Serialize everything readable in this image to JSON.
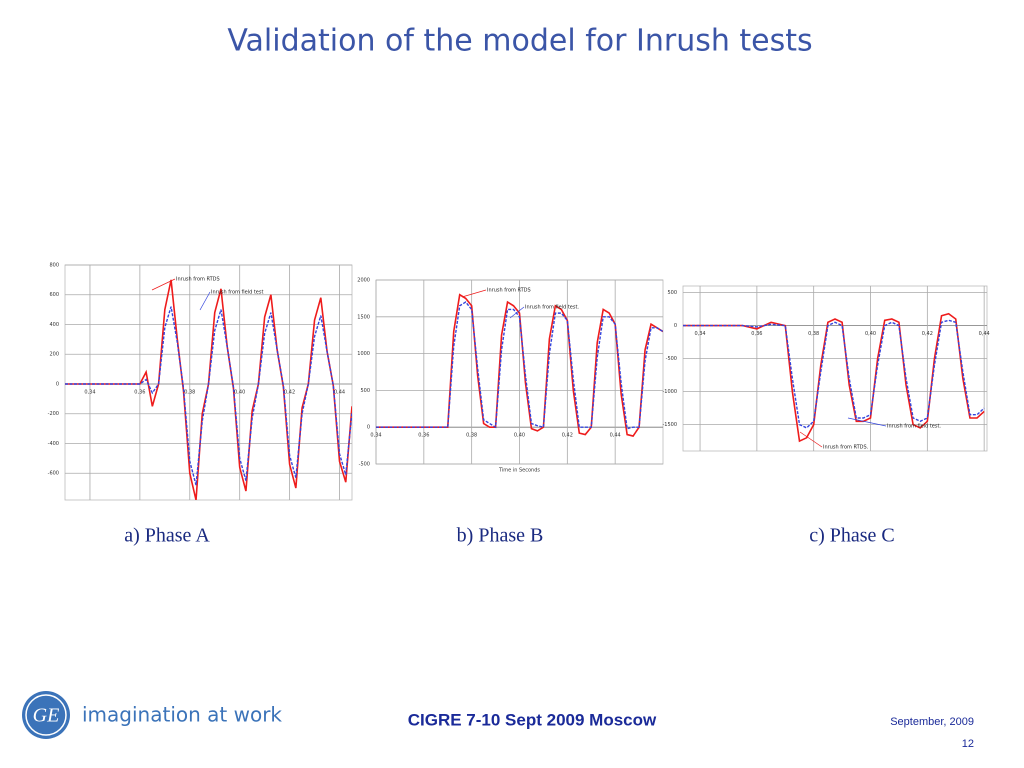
{
  "title": "Validation of the model for Inrush tests",
  "captions": [
    "a) Phase A",
    "b) Phase B",
    "c) Phase C"
  ],
  "footer": {
    "tagline": "imagination at work",
    "event": "CIGRE 7-10 Sept 2009 Moscow",
    "date": "September,  2009",
    "page": "12"
  },
  "chart_data": [
    {
      "type": "line",
      "x": [
        0.33,
        0.335,
        0.34,
        0.345,
        0.35,
        0.355,
        0.36,
        0.3625,
        0.365,
        0.3675,
        0.37,
        0.3725,
        0.375,
        0.3775,
        0.38,
        0.3825,
        0.385,
        0.3875,
        0.39,
        0.3925,
        0.395,
        0.3975,
        0.4,
        0.4025,
        0.405,
        0.4075,
        0.41,
        0.4125,
        0.415,
        0.4175,
        0.42,
        0.4225,
        0.425,
        0.4275,
        0.43,
        0.4325,
        0.435,
        0.4375,
        0.44,
        0.4425,
        0.445
      ],
      "series": [
        {
          "name": "Inrush from RTDS",
          "color": "#ee1c1c",
          "values": [
            0,
            0,
            0,
            0,
            0,
            0,
            0,
            80,
            -150,
            0,
            500,
            700,
            300,
            -50,
            -600,
            -780,
            -200,
            0,
            480,
            640,
            250,
            -30,
            -560,
            -720,
            -180,
            0,
            450,
            600,
            230,
            -20,
            -540,
            -700,
            -160,
            0,
            430,
            580,
            220,
            -10,
            -520,
            -660,
            -150
          ]
        },
        {
          "name": "Inrush from field test",
          "color": "#3344dd",
          "values": [
            0,
            0,
            0,
            0,
            0,
            0,
            0,
            30,
            -60,
            0,
            380,
            520,
            280,
            -30,
            -520,
            -680,
            -250,
            0,
            360,
            500,
            250,
            -20,
            -500,
            -650,
            -230,
            0,
            340,
            480,
            230,
            -10,
            -480,
            -630,
            -200,
            0,
            320,
            460,
            220,
            -10,
            -470,
            -610,
            -190
          ]
        }
      ],
      "xlim": [
        0.33,
        0.445
      ],
      "xticks": [
        {
          "value": 0.34,
          "label": "0,34"
        },
        {
          "value": 0.36,
          "label": "0,36"
        },
        {
          "value": 0.38,
          "label": "0,38"
        },
        {
          "value": 0.4,
          "label": "0,40"
        },
        {
          "value": 0.42,
          "label": "0,42"
        },
        {
          "value": 0.44,
          "label": "0,44"
        }
      ],
      "ylim": [
        -780,
        800
      ],
      "yticks": [
        800,
        600,
        400,
        200,
        0,
        -200,
        -400,
        -600
      ],
      "grid": true
    },
    {
      "type": "line",
      "x": [
        0.34,
        0.345,
        0.35,
        0.355,
        0.36,
        0.365,
        0.37,
        0.3725,
        0.375,
        0.3775,
        0.38,
        0.3825,
        0.385,
        0.3875,
        0.39,
        0.3925,
        0.395,
        0.3975,
        0.4,
        0.4025,
        0.405,
        0.4075,
        0.41,
        0.4125,
        0.415,
        0.4175,
        0.42,
        0.4225,
        0.425,
        0.4275,
        0.43,
        0.4325,
        0.435,
        0.4375,
        0.44,
        0.4425,
        0.445,
        0.4475,
        0.45,
        0.4525,
        0.455,
        0.4575,
        0.46
      ],
      "series": [
        {
          "name": "Inrush from RTDS",
          "color": "#ee1c1c",
          "values": [
            0,
            0,
            0,
            0,
            0,
            0,
            0,
            1300,
            1800,
            1750,
            1650,
            700,
            50,
            0,
            0,
            1250,
            1700,
            1650,
            1550,
            600,
            -20,
            -50,
            0,
            1200,
            1650,
            1600,
            1450,
            500,
            -80,
            -100,
            0,
            1150,
            1600,
            1550,
            1400,
            450,
            -100,
            -120,
            0,
            1050,
            1400,
            1350,
            1300
          ]
        },
        {
          "name": "Inrush from field test.",
          "color": "#3344dd",
          "values": [
            0,
            0,
            0,
            0,
            0,
            0,
            0,
            1100,
            1650,
            1700,
            1600,
            800,
            100,
            50,
            0,
            1050,
            1600,
            1600,
            1500,
            700,
            50,
            20,
            0,
            1000,
            1550,
            1550,
            1450,
            650,
            0,
            0,
            0,
            950,
            1500,
            1500,
            1400,
            600,
            -20,
            0,
            0,
            900,
            1350,
            1350,
            1300
          ]
        }
      ],
      "xlabel": "Time in Seconds",
      "xlim": [
        0.34,
        0.46
      ],
      "xticks": [
        {
          "value": 0.34,
          "label": "0,34"
        },
        {
          "value": 0.36,
          "label": "0,36"
        },
        {
          "value": 0.38,
          "label": "0,38"
        },
        {
          "value": 0.4,
          "label": "0,40"
        },
        {
          "value": 0.42,
          "label": "0,42"
        },
        {
          "value": 0.44,
          "label": "0,44"
        }
      ],
      "ylim": [
        -500,
        2000
      ],
      "yticks": [
        2000,
        1500,
        1000,
        500,
        0,
        -500
      ],
      "grid": true
    },
    {
      "type": "line",
      "x": [
        0.334,
        0.34,
        0.345,
        0.35,
        0.355,
        0.36,
        0.365,
        0.37,
        0.3725,
        0.375,
        0.3775,
        0.38,
        0.3825,
        0.385,
        0.3875,
        0.39,
        0.3925,
        0.395,
        0.3975,
        0.4,
        0.4025,
        0.405,
        0.4075,
        0.41,
        0.4125,
        0.415,
        0.4175,
        0.42,
        0.4225,
        0.425,
        0.4275,
        0.43,
        0.4325,
        0.435,
        0.4375,
        0.44
      ],
      "series": [
        {
          "name": "Inrush from RTDS.",
          "color": "#ee1c1c",
          "values": [
            0,
            0,
            0,
            0,
            0,
            -50,
            50,
            0,
            -1000,
            -1750,
            -1700,
            -1500,
            -600,
            50,
            100,
            50,
            -900,
            -1450,
            -1450,
            -1400,
            -500,
            80,
            100,
            50,
            -900,
            -1500,
            -1550,
            -1450,
            -500,
            150,
            180,
            100,
            -800,
            -1400,
            -1400,
            -1300
          ]
        },
        {
          "name": "Inrush from field test.",
          "color": "#3344dd",
          "values": [
            0,
            0,
            0,
            0,
            0,
            -20,
            20,
            0,
            -800,
            -1500,
            -1550,
            -1450,
            -700,
            0,
            50,
            0,
            -800,
            -1400,
            -1400,
            -1350,
            -600,
            0,
            50,
            0,
            -800,
            -1400,
            -1450,
            -1400,
            -600,
            50,
            80,
            50,
            -700,
            -1350,
            -1350,
            -1250
          ]
        }
      ],
      "xlim": [
        0.334,
        0.441
      ],
      "xticks": [
        {
          "value": 0.34,
          "label": "0,34"
        },
        {
          "value": 0.36,
          "label": "0,36"
        },
        {
          "value": 0.38,
          "label": "0,38"
        },
        {
          "value": 0.4,
          "label": "0,40"
        },
        {
          "value": 0.42,
          "label": "0,42"
        },
        {
          "value": 0.44,
          "label": "0,44"
        }
      ],
      "ylim": [
        -1900,
        600
      ],
      "yticks": [
        500,
        0,
        -500,
        -1000,
        -1500
      ],
      "grid": true
    }
  ]
}
